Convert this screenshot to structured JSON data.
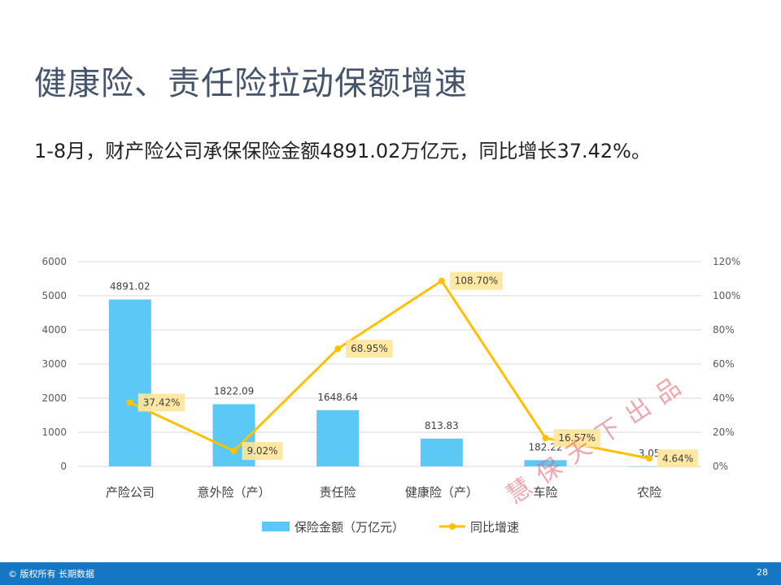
{
  "slide": {
    "title": "健康险、责任险拉动保额增速",
    "subtitle": "1-8月，财产险公司承保保险金额4891.02万亿元，同比增长37.42%。",
    "watermark": "慧保天下出品",
    "footer_text": "© 版权所有 长期数据",
    "page_number": "28"
  },
  "chart_data": {
    "type": "bar",
    "categories": [
      "产险公司",
      "意外险（产）",
      "责任险",
      "健康险（产）",
      "车险",
      "农险"
    ],
    "series": [
      {
        "name": "保险金额（万亿元）",
        "type": "bar",
        "axis": "left",
        "color": "#5bc8f5",
        "values": [
          4891.02,
          1822.09,
          1648.64,
          813.83,
          182.22,
          3.05
        ],
        "labels": [
          "4891.02",
          "1822.09",
          "1648.64",
          "813.83",
          "182.22",
          "3.05"
        ]
      },
      {
        "name": "同比增速",
        "type": "line",
        "axis": "right",
        "color": "#ffc000",
        "values": [
          37.42,
          9.02,
          68.95,
          108.7,
          16.57,
          4.64
        ],
        "labels": [
          "37.42%",
          "9.02%",
          "68.95%",
          "108.70%",
          "16.57%",
          "4.64%"
        ]
      }
    ],
    "y_left": {
      "min": 0,
      "max": 6000,
      "ticks": [
        "0",
        "1000",
        "2000",
        "3000",
        "4000",
        "5000",
        "6000"
      ]
    },
    "y_right": {
      "min": 0,
      "max": 120,
      "ticks": [
        "0%",
        "20%",
        "40%",
        "60%",
        "80%",
        "100%",
        "120%"
      ]
    },
    "grid": true,
    "legend_position": "bottom",
    "label_highlight_color": "#ffe699"
  }
}
